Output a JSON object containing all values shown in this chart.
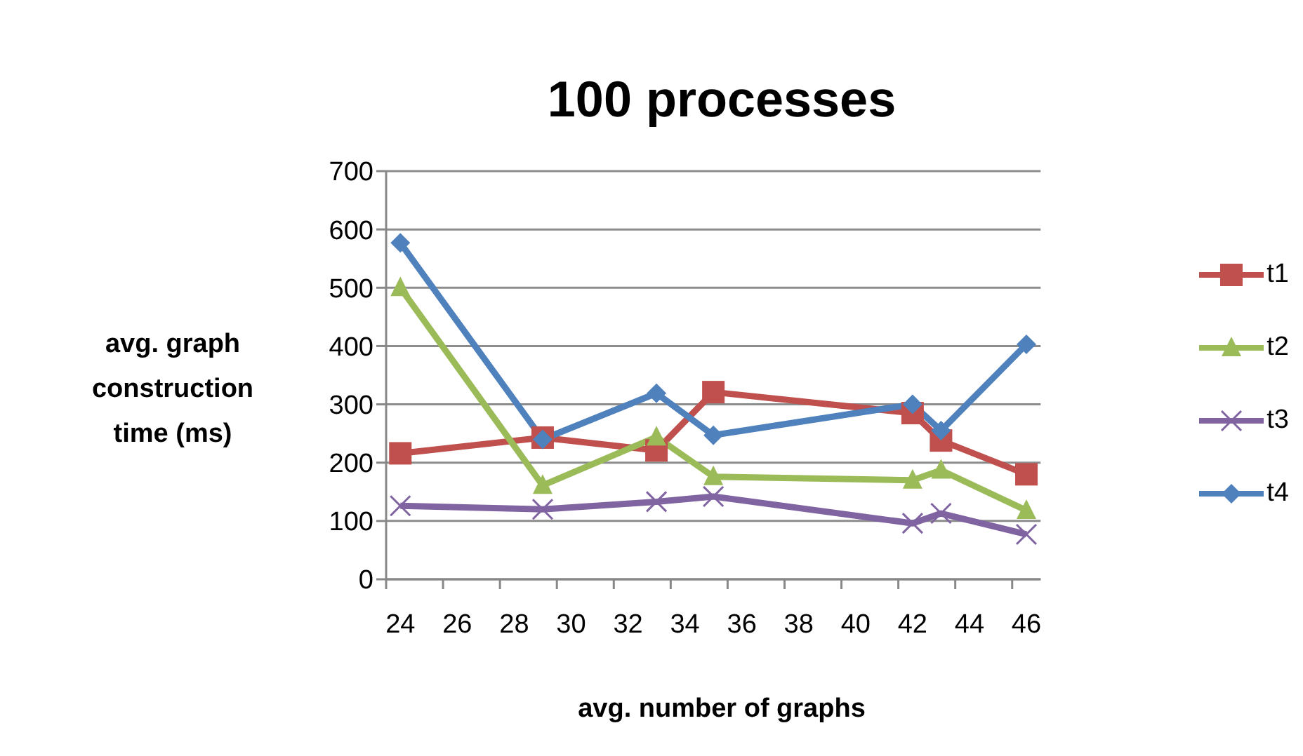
{
  "chart_data": {
    "type": "line",
    "title": "100 processes",
    "xlabel": "avg. number of graphs",
    "ylabel": "avg. graph construction time (ms)",
    "x": [
      24,
      29,
      33,
      35,
      42,
      43,
      46
    ],
    "series": [
      {
        "name": "t1",
        "color": "#c0504d",
        "marker": "square",
        "values": [
          216,
          243,
          221,
          321,
          285,
          238,
          180
        ]
      },
      {
        "name": "t2",
        "color": "#9bbb59",
        "marker": "triangle",
        "values": [
          500,
          161,
          244,
          176,
          170,
          187,
          118
        ]
      },
      {
        "name": "t3",
        "color": "#8064a2",
        "marker": "cross",
        "values": [
          126,
          120,
          133,
          142,
          96,
          113,
          77
        ]
      },
      {
        "name": "t4",
        "color": "#4f81bd",
        "marker": "diamond",
        "values": [
          577,
          240,
          319,
          247,
          300,
          255,
          403
        ]
      }
    ],
    "xlim": [
      23.5,
      46.5
    ],
    "xticks": [
      {
        "value": 23.5,
        "label": null
      },
      24,
      {
        "value": 25.5,
        "label": null
      },
      26,
      {
        "value": 27.5,
        "label": null
      },
      28,
      {
        "value": 29.5,
        "label": null
      },
      30,
      {
        "value": 31.5,
        "label": null
      },
      32,
      {
        "value": 33.5,
        "label": null
      },
      34,
      {
        "value": 35.5,
        "label": null
      },
      36,
      {
        "value": 37.5,
        "label": null
      },
      38,
      {
        "value": 39.5,
        "label": null
      },
      40,
      {
        "value": 41.5,
        "label": null
      },
      42,
      {
        "value": 43.5,
        "label": null
      },
      44,
      {
        "value": 45.5,
        "label": null
      },
      46
    ],
    "ylim": [
      0,
      700
    ],
    "yticks": [
      0,
      100,
      200,
      300,
      400,
      500,
      600,
      700
    ],
    "grid": "y",
    "legend": "right",
    "line_style": "solid"
  }
}
